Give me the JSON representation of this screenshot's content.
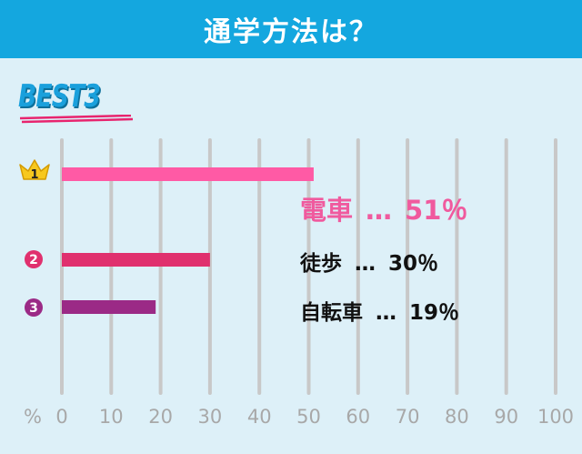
{
  "header": {
    "title": "通学方法は？"
  },
  "badge": {
    "label": "BEST3"
  },
  "colors": {
    "header_bg": "#14a7df",
    "background": "#ddf0f8",
    "grid": "#c8c8c8",
    "rank1": "#ff5aa5",
    "rank2": "#e0306e",
    "rank3": "#9b2a86",
    "crown": "#f7c81e"
  },
  "rank_icons": [
    "crown-1-icon",
    "circle-2-icon",
    "circle-3-icon"
  ],
  "rank_numbers": [
    "1",
    "2",
    "3"
  ],
  "chart_data": {
    "type": "bar",
    "orientation": "horizontal",
    "categories": [
      "電車",
      "徒歩",
      "自転車"
    ],
    "values": [
      51,
      30,
      19
    ],
    "unit": "%",
    "xlim": [
      0,
      100
    ],
    "ticks": [
      "0",
      "10",
      "20",
      "30",
      "40",
      "50",
      "60",
      "70",
      "80",
      "90",
      "100"
    ],
    "tick_values": [
      0,
      10,
      20,
      30,
      40,
      50,
      60,
      70,
      80,
      90,
      100
    ],
    "axis_unit_label": "%",
    "grid": true,
    "labels": [
      {
        "name": "電車",
        "sep": "…",
        "value": "51％"
      },
      {
        "name": "徒歩",
        "sep": "…",
        "value": "30％"
      },
      {
        "name": "自転車",
        "sep": "…",
        "value": "19％"
      }
    ]
  }
}
